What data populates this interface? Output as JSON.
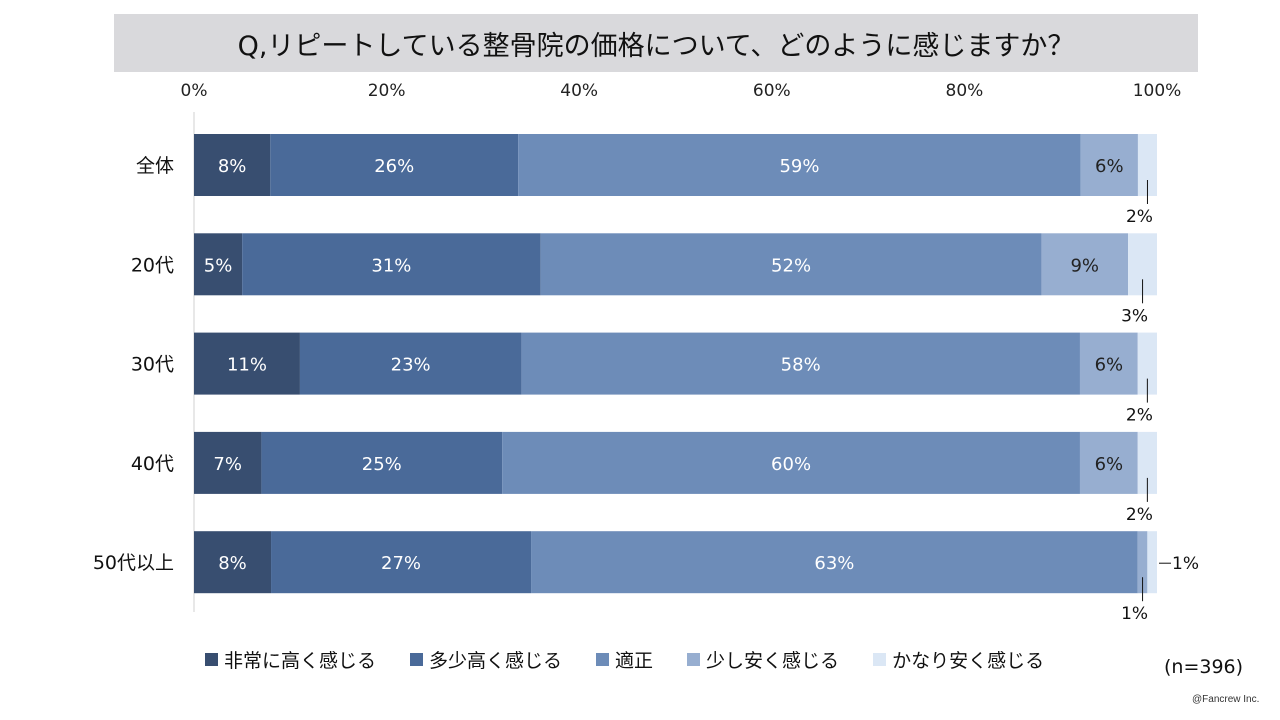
{
  "chart_data": {
    "type": "bar",
    "orientation": "horizontal-stacked-100",
    "title": "Q,リピートしている整骨院の価格について、どのように感じますか？",
    "xlim": [
      0,
      100
    ],
    "xticks": [
      "0%",
      "20%",
      "40%",
      "60%",
      "80%",
      "100%"
    ],
    "categories": [
      "全体",
      "20代",
      "30代",
      "40代",
      "50代以上"
    ],
    "series": [
      {
        "name": "非常に高く感じる",
        "color": "#384e70",
        "values": [
          8,
          5,
          11,
          7,
          8
        ],
        "labels": [
          "8%",
          "5%",
          "11%",
          "7%",
          "8%"
        ]
      },
      {
        "name": "多少高く感じる",
        "color": "#4a6a99",
        "values": [
          26,
          31,
          23,
          25,
          27
        ],
        "labels": [
          "26%",
          "31%",
          "23%",
          "25%",
          "27%"
        ]
      },
      {
        "name": "適正",
        "color": "#6d8cb8",
        "values": [
          59,
          52,
          58,
          60,
          63
        ],
        "labels": [
          "59%",
          "52%",
          "58%",
          "60%",
          "63%"
        ]
      },
      {
        "name": "少し安く感じる",
        "color": "#97aed0",
        "values": [
          6,
          9,
          6,
          6,
          1
        ],
        "labels": [
          "6%",
          "9%",
          "6%",
          "6%",
          "1%"
        ]
      },
      {
        "name": "かなり安く感じる",
        "color": "#dbe7f5",
        "values": [
          2,
          3,
          2,
          2,
          1
        ],
        "labels": [
          "2%",
          "3%",
          "2%",
          "2%",
          "1%"
        ]
      }
    ],
    "legend_position": "bottom",
    "note": "(n=396)"
  },
  "footer": {
    "n_label": "(n=396)",
    "copyright": "@Fancrew Inc."
  }
}
